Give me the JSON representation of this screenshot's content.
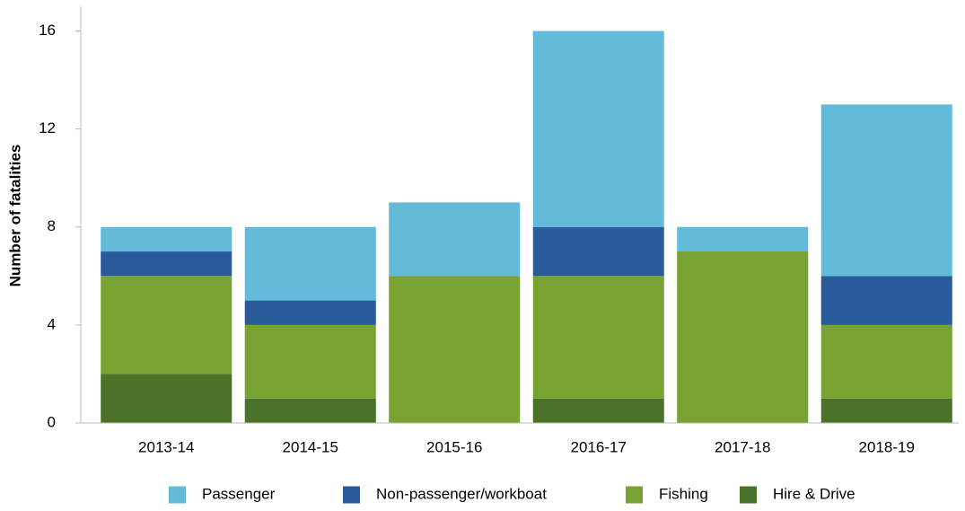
{
  "chart_data": {
    "type": "stacked_bar",
    "y_label": "Number of fatalities",
    "categories": [
      "2013-14",
      "2014-15",
      "2015-16",
      "2016-17",
      "2017-18",
      "2018-19"
    ],
    "series": [
      {
        "name": "Hire & Drive",
        "color": "#4a7229",
        "values": [
          2,
          1,
          0,
          1,
          0,
          1
        ]
      },
      {
        "name": "Fishing",
        "color": "#78a232",
        "values": [
          4,
          3,
          6,
          5,
          7,
          3
        ]
      },
      {
        "name": "Non-passenger/workboat",
        "color": "#2a5b9a",
        "values": [
          1,
          1,
          0,
          2,
          0,
          2
        ]
      },
      {
        "name": "Passenger",
        "color": "#62bbd9",
        "values": [
          1,
          3,
          3,
          8,
          1,
          7
        ]
      }
    ],
    "ylim": [
      0,
      17
    ],
    "yticks": [
      0,
      4,
      8,
      12,
      16
    ],
    "legend": "bottom"
  }
}
